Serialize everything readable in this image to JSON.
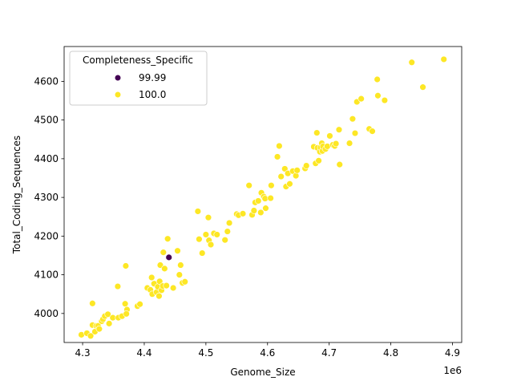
{
  "chart_data": {
    "type": "scatter",
    "xlabel": "Genome_Size",
    "ylabel": "Total_Coding_Sequences",
    "x_offset_label": "1e6",
    "xlim": [
      4.27,
      4.915
    ],
    "ylim": [
      3925,
      4690
    ],
    "xticks": [
      4.3,
      4.4,
      4.5,
      4.6,
      4.7,
      4.8,
      4.9
    ],
    "yticks": [
      4000,
      4100,
      4200,
      4300,
      4400,
      4500,
      4600
    ],
    "legend": {
      "title": "Completeness_Specific",
      "placement": "upper-left",
      "entries": [
        {
          "label": "99.99",
          "color": "#440154"
        },
        {
          "label": "100.0",
          "color": "#fde725"
        }
      ]
    },
    "series": [
      {
        "name": "99.99",
        "color": "#440154",
        "points": [
          [
            4.44,
            4145
          ]
        ]
      },
      {
        "name": "100.0",
        "color": "#fde725",
        "points": [
          [
            4.298,
            3945
          ],
          [
            4.307,
            3949
          ],
          [
            4.313,
            3942
          ],
          [
            4.316,
            4026
          ],
          [
            4.316,
            3970
          ],
          [
            4.32,
            3953
          ],
          [
            4.322,
            3968
          ],
          [
            4.325,
            3968
          ],
          [
            4.327,
            3960
          ],
          [
            4.331,
            3980
          ],
          [
            4.333,
            3985
          ],
          [
            4.336,
            3993
          ],
          [
            4.341,
            3998
          ],
          [
            4.343,
            3974
          ],
          [
            4.349,
            3989
          ],
          [
            4.357,
            4070
          ],
          [
            4.358,
            3989
          ],
          [
            4.364,
            3993
          ],
          [
            4.37,
            4123
          ],
          [
            4.369,
            4025
          ],
          [
            4.372,
            4010
          ],
          [
            4.371,
            3999
          ],
          [
            4.389,
            4019
          ],
          [
            4.393,
            4024
          ],
          [
            4.405,
            4066
          ],
          [
            4.41,
            4061
          ],
          [
            4.412,
            4093
          ],
          [
            4.413,
            4050
          ],
          [
            4.416,
            4077
          ],
          [
            4.42,
            4055
          ],
          [
            4.422,
            4069
          ],
          [
            4.424,
            4045
          ],
          [
            4.425,
            4083
          ],
          [
            4.426,
            4125
          ],
          [
            4.428,
            4060
          ],
          [
            4.43,
            4071
          ],
          [
            4.431,
            4158
          ],
          [
            4.433,
            4116
          ],
          [
            4.436,
            4072
          ],
          [
            4.438,
            4193
          ],
          [
            4.447,
            4066
          ],
          [
            4.454,
            4162
          ],
          [
            4.457,
            4100
          ],
          [
            4.459,
            4125
          ],
          [
            4.462,
            4079
          ],
          [
            4.466,
            4082
          ],
          [
            4.487,
            4264
          ],
          [
            4.489,
            4192
          ],
          [
            4.494,
            4156
          ],
          [
            4.5,
            4204
          ],
          [
            4.504,
            4248
          ],
          [
            4.505,
            4189
          ],
          [
            4.508,
            4178
          ],
          [
            4.513,
            4207
          ],
          [
            4.518,
            4204
          ],
          [
            4.531,
            4190
          ],
          [
            4.535,
            4212
          ],
          [
            4.538,
            4234
          ],
          [
            4.55,
            4257
          ],
          [
            4.553,
            4254
          ],
          [
            4.56,
            4258
          ],
          [
            4.57,
            4331
          ],
          [
            4.575,
            4255
          ],
          [
            4.578,
            4266
          ],
          [
            4.58,
            4287
          ],
          [
            4.585,
            4291
          ],
          [
            4.589,
            4261
          ],
          [
            4.59,
            4312
          ],
          [
            4.594,
            4302
          ],
          [
            4.596,
            4297
          ],
          [
            4.597,
            4272
          ],
          [
            4.605,
            4298
          ],
          [
            4.606,
            4331
          ],
          [
            4.616,
            4405
          ],
          [
            4.619,
            4433
          ],
          [
            4.622,
            4354
          ],
          [
            4.628,
            4374
          ],
          [
            4.63,
            4328
          ],
          [
            4.633,
            4362
          ],
          [
            4.636,
            4335
          ],
          [
            4.641,
            4368
          ],
          [
            4.646,
            4356
          ],
          [
            4.648,
            4370
          ],
          [
            4.661,
            4375
          ],
          [
            4.663,
            4382
          ],
          [
            4.675,
            4431
          ],
          [
            4.678,
            4388
          ],
          [
            4.68,
            4467
          ],
          [
            4.681,
            4428
          ],
          [
            4.683,
            4395
          ],
          [
            4.685,
            4418
          ],
          [
            4.686,
            4429
          ],
          [
            4.688,
            4440
          ],
          [
            4.689,
            4420
          ],
          [
            4.69,
            4432
          ],
          [
            4.694,
            4425
          ],
          [
            4.697,
            4432
          ],
          [
            4.701,
            4459
          ],
          [
            4.706,
            4436
          ],
          [
            4.709,
            4433
          ],
          [
            4.711,
            4439
          ],
          [
            4.716,
            4475
          ],
          [
            4.717,
            4385
          ],
          [
            4.733,
            4440
          ],
          [
            4.738,
            4503
          ],
          [
            4.742,
            4466
          ],
          [
            4.745,
            4547
          ],
          [
            4.752,
            4555
          ],
          [
            4.765,
            4477
          ],
          [
            4.77,
            4471
          ],
          [
            4.778,
            4605
          ],
          [
            4.779,
            4563
          ],
          [
            4.79,
            4551
          ],
          [
            4.834,
            4649
          ],
          [
            4.852,
            4585
          ],
          [
            4.886,
            4657
          ]
        ]
      }
    ]
  }
}
